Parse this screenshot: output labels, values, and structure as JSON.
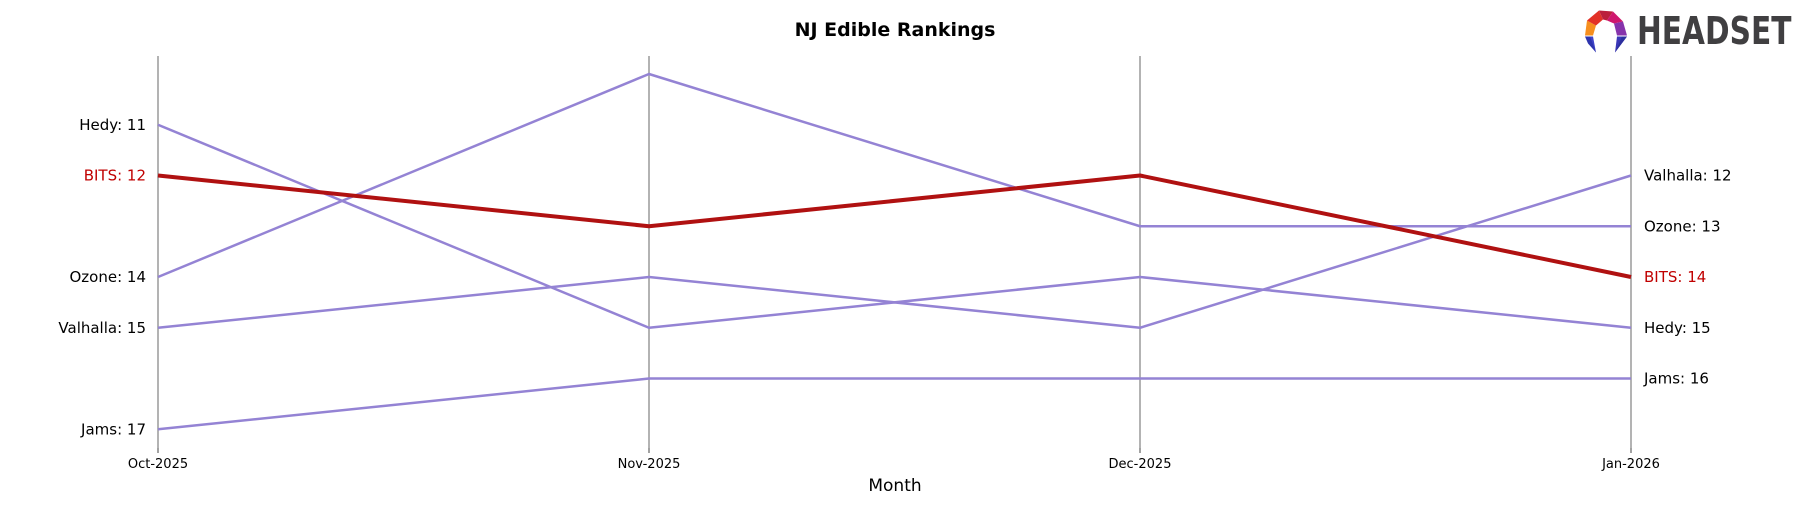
{
  "chart_data": {
    "type": "line",
    "subtype": "bump-ranking",
    "title": "NJ Edible Rankings",
    "xlabel": "Month",
    "categories": [
      "Oct-2025",
      "Nov-2025",
      "Dec-2025",
      "Jan-2026"
    ],
    "rank_axis": {
      "best_visible": 10,
      "worst_visible": 17,
      "inverted": true,
      "gridlines": false
    },
    "legend_position": "edge-labels",
    "series": [
      {
        "name": "Hedy",
        "values": [
          11,
          15,
          14,
          15
        ],
        "start_label": "Hedy: 11",
        "end_label": "Hedy: 15",
        "color": "#9483d4",
        "label_color": "#000000",
        "line_width": 2.5,
        "highlight": false
      },
      {
        "name": "BITS",
        "values": [
          12,
          13,
          12,
          14
        ],
        "start_label": "BITS: 12",
        "end_label": "BITS: 14",
        "color": "#b01111",
        "label_color": "#c00000",
        "line_width": 4,
        "highlight": true
      },
      {
        "name": "Ozone",
        "values": [
          14,
          10,
          13,
          13
        ],
        "start_label": "Ozone: 14",
        "end_label": "Ozone: 13",
        "color": "#9483d4",
        "label_color": "#000000",
        "line_width": 2.5,
        "highlight": false
      },
      {
        "name": "Valhalla",
        "values": [
          15,
          14,
          15,
          12
        ],
        "start_label": "Valhalla: 15",
        "end_label": "Valhalla: 12",
        "color": "#9483d4",
        "label_color": "#000000",
        "line_width": 2.5,
        "highlight": false
      },
      {
        "name": "Jams",
        "values": [
          17,
          16,
          16,
          16
        ],
        "start_label": "Jams: 17",
        "end_label": "Jams: 16",
        "color": "#9483d4",
        "label_color": "#000000",
        "line_width": 2.5,
        "highlight": false
      }
    ],
    "axis_color": "#b3b3b3",
    "tick_color": "#444444",
    "text_color": "#000000"
  },
  "logo": {
    "text": "HEADSET",
    "icon": "headset-logo-icon",
    "icon_colors": [
      "#f68f1e",
      "#e23127",
      "#bb1f3c",
      "#cf176d",
      "#8633ab",
      "#3f43c8",
      "#3a37b8"
    ]
  }
}
